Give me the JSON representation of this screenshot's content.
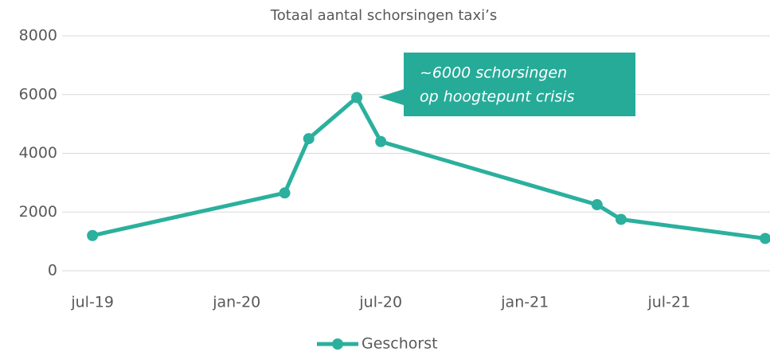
{
  "chart_data": {
    "type": "line",
    "title": "Totaal aantal schorsingen taxi’s",
    "x": [
      "2019-07",
      "2020-03",
      "2020-04",
      "2020-06",
      "2020-07",
      "2021-04",
      "2021-05",
      "2021-11"
    ],
    "series": [
      {
        "name": "Geschorst",
        "color": "#2bb09d",
        "values": [
          1200,
          2650,
          4500,
          5900,
          4400,
          2250,
          1750,
          1100
        ]
      }
    ],
    "xlim": [
      "2019-06",
      "2021-11"
    ],
    "xticks": [
      {
        "value": "2019-07",
        "label": "jul-19"
      },
      {
        "value": "2020-01",
        "label": "jan-20"
      },
      {
        "value": "2020-07",
        "label": "jul-20"
      },
      {
        "value": "2021-01",
        "label": "jan-21"
      },
      {
        "value": "2021-07",
        "label": "jul-21"
      }
    ],
    "ylim": [
      0,
      8000
    ],
    "yticks": [
      0,
      2000,
      4000,
      6000,
      8000
    ],
    "grid": true,
    "legend": "bottom",
    "annotation": {
      "lines": [
        "~6000 schorsingen",
        "op hoogtepunt crisis"
      ],
      "color": "#26ab98"
    }
  }
}
